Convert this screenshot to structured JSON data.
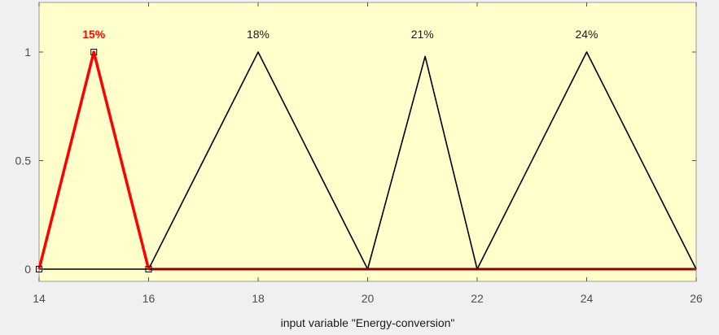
{
  "chart_data": {
    "type": "line",
    "xlabel": "input variable \"Energy-conversion\"",
    "ylabel": "",
    "xlim": [
      14,
      26
    ],
    "ylim": [
      -0.04,
      1.2
    ],
    "xticks": [
      14,
      16,
      18,
      20,
      22,
      24,
      26
    ],
    "yticks": [
      0,
      0.5,
      1
    ],
    "ytick_labels": [
      "0",
      "0.5",
      "1"
    ],
    "grid": false,
    "background_color": "#ffffcc",
    "series": [
      {
        "name": "15%",
        "x": [
          14,
          15,
          16
        ],
        "y": [
          0,
          1,
          0
        ],
        "color": "#ff0000",
        "selected": true,
        "label_x": 15
      },
      {
        "name": "18%",
        "x": [
          16,
          18,
          20
        ],
        "y": [
          0,
          1,
          0
        ],
        "color": "#000000",
        "selected": false,
        "label_x": 18
      },
      {
        "name": "21%",
        "x": [
          20,
          21.05,
          22
        ],
        "y": [
          0,
          0.98,
          0
        ],
        "color": "#000000",
        "selected": false,
        "label_x": 21
      },
      {
        "name": "24%",
        "x": [
          22,
          24,
          26
        ],
        "y": [
          0,
          1,
          0
        ],
        "color": "#000000",
        "selected": false,
        "label_x": 24
      }
    ],
    "baseline": {
      "color": "#8b0000"
    }
  }
}
